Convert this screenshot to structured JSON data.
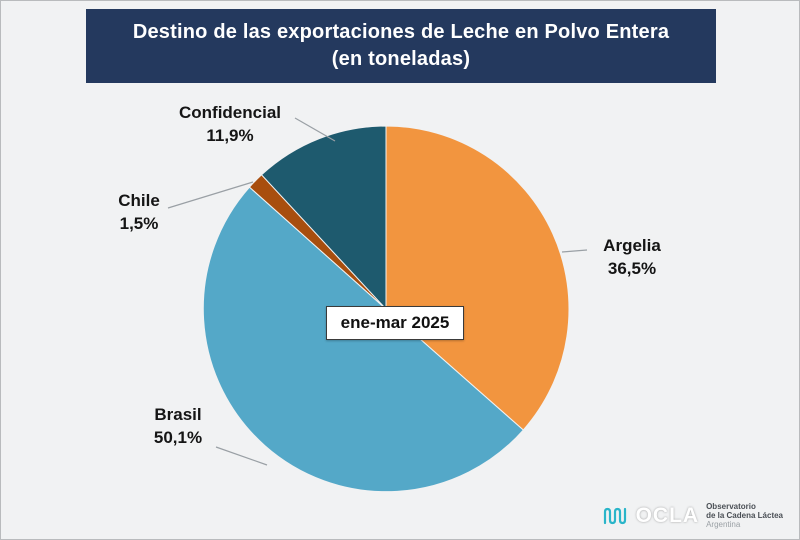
{
  "header": {
    "line1": "Destino de las exportaciones de Leche en Polvo Entera",
    "line2": "(en toneladas)"
  },
  "chart_data": {
    "type": "pie",
    "title": "Destino de las exportaciones de Leche en Polvo Entera (en toneladas)",
    "center_label": "ene-mar 2025",
    "unit": "porcentaje del total en toneladas",
    "start_angle_deg": 0,
    "direction": "clockwise",
    "slices": [
      {
        "label": "Argelia",
        "value": 36.5,
        "display": "36,5%",
        "color": "#F2953F"
      },
      {
        "label": "Brasil",
        "value": 50.1,
        "display": "50,1%",
        "color": "#54A8C8"
      },
      {
        "label": "Chile",
        "value": 1.5,
        "display": "1,5%",
        "color": "#A84E0E"
      },
      {
        "label": "Confidencial",
        "value": 11.9,
        "display": "11,9%",
        "color": "#1E5A6E"
      }
    ],
    "legend_position": "labels-with-leader-lines",
    "background_color": "#f1f2f3",
    "title_bar_color": "#24395e"
  },
  "footer": {
    "logo_text": "OCLA",
    "org_line1": "Observatorio",
    "org_line2": "de la Cadena Láctea",
    "org_line3": "Argentina"
  }
}
